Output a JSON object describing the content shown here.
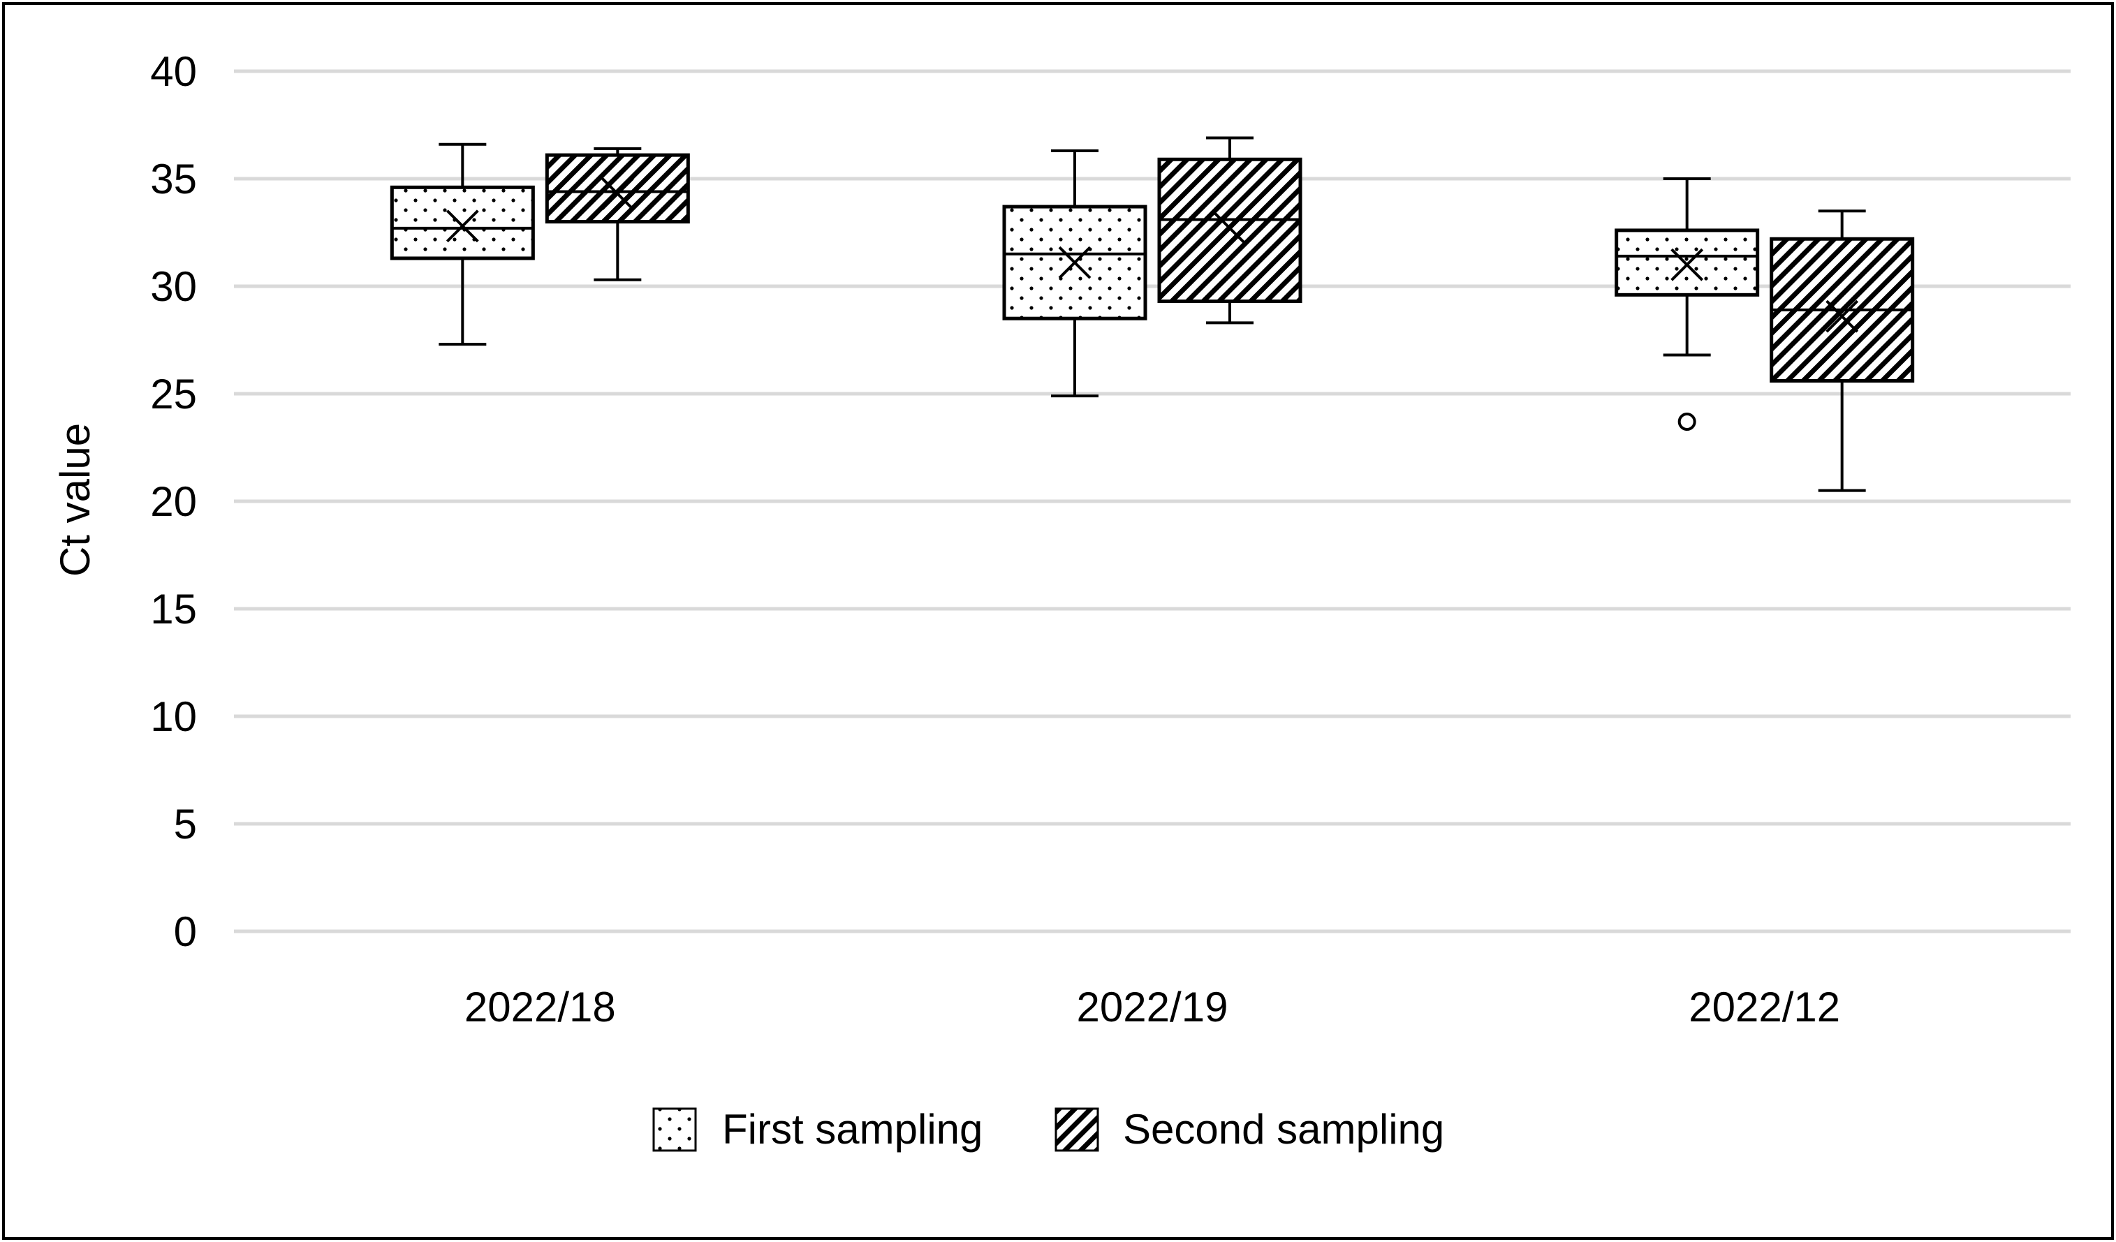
{
  "colors": {
    "gridline": "#d9d9d9",
    "stroke": "#000000",
    "background": "#ffffff"
  },
  "chart_data": {
    "type": "box",
    "title": "",
    "xlabel": "",
    "ylabel": "Ct value",
    "ylim": [
      0,
      40
    ],
    "yticks": [
      0,
      5,
      10,
      15,
      20,
      25,
      30,
      35,
      40
    ],
    "grid": true,
    "legend_position": "bottom",
    "categories": [
      "2022/18",
      "2022/19",
      "2022/12"
    ],
    "series": [
      {
        "name": "First sampling",
        "pattern": "dots",
        "boxes": [
          {
            "min": 27.3,
            "q1": 31.3,
            "median": 32.7,
            "q3": 34.6,
            "max": 36.6,
            "mean": 32.8,
            "outliers": []
          },
          {
            "min": 24.9,
            "q1": 28.5,
            "median": 31.5,
            "q3": 33.7,
            "max": 36.3,
            "mean": 31.1,
            "outliers": []
          },
          {
            "min": 26.8,
            "q1": 29.6,
            "median": 31.4,
            "q3": 32.6,
            "max": 35.0,
            "mean": 31.0,
            "outliers": [
              23.7
            ]
          }
        ]
      },
      {
        "name": "Second sampling",
        "pattern": "hatch",
        "boxes": [
          {
            "min": 30.3,
            "q1": 33.0,
            "median": 34.4,
            "q3": 36.1,
            "max": 36.4,
            "mean": 34.3,
            "outliers": []
          },
          {
            "min": 28.3,
            "q1": 29.3,
            "median": 33.1,
            "q3": 35.9,
            "max": 36.9,
            "mean": 32.7,
            "outliers": []
          },
          {
            "min": 20.5,
            "q1": 25.6,
            "median": 28.9,
            "q3": 32.2,
            "max": 33.5,
            "mean": 28.6,
            "outliers": []
          }
        ]
      }
    ]
  }
}
